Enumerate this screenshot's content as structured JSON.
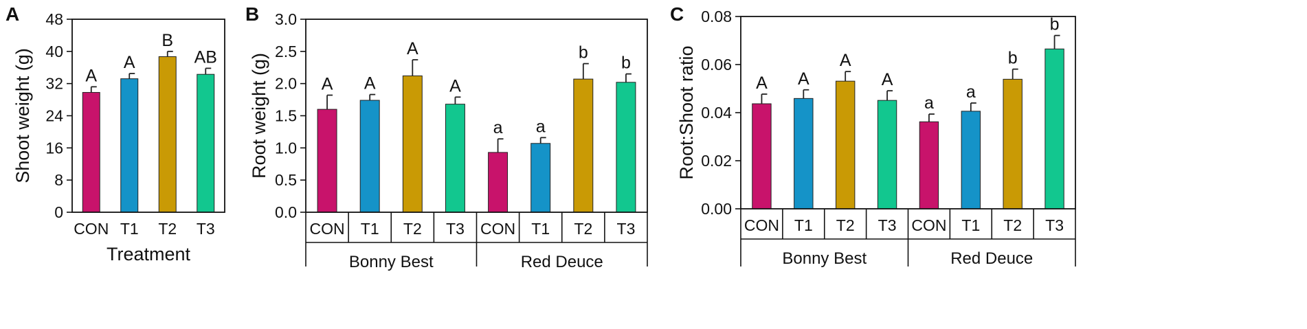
{
  "colors": {
    "CON": "#c8136b",
    "T1": "#1593c8",
    "T2": "#c99a05",
    "T3": "#12c78f",
    "axis": "#111111"
  },
  "chart_data": [
    {
      "panel": "A",
      "type": "bar",
      "ylabel": "Shoot weight (g)",
      "xlabel": "Treatment",
      "ylim": [
        0,
        48
      ],
      "yticks": [
        "0",
        "8",
        "16",
        "24",
        "32",
        "40",
        "48"
      ],
      "categories": [
        "CON",
        "T1",
        "T2",
        "T3"
      ],
      "groups": [],
      "values": [
        29.8,
        33.2,
        38.7,
        34.3
      ],
      "errors": [
        1.4,
        1.3,
        1.3,
        1.5
      ],
      "letters": [
        "A",
        "A",
        "B",
        "AB"
      ]
    },
    {
      "panel": "B",
      "type": "bar",
      "ylabel": "Root weight (g)",
      "xlabel": "",
      "ylim": [
        0,
        3.0
      ],
      "yticks": [
        "0.0",
        "0.5",
        "1.0",
        "1.5",
        "2.0",
        "2.5",
        "3.0"
      ],
      "categories": [
        "CON",
        "T1",
        "T2",
        "T3",
        "CON",
        "T1",
        "T2",
        "T3"
      ],
      "groups": [
        "Bonny Best",
        "Red Deuce"
      ],
      "values": [
        1.6,
        1.74,
        2.12,
        1.68,
        0.93,
        1.07,
        2.07,
        2.02
      ],
      "errors": [
        0.22,
        0.09,
        0.25,
        0.11,
        0.21,
        0.09,
        0.24,
        0.13
      ],
      "letters": [
        "A",
        "A",
        "A",
        "A",
        "a",
        "a",
        "b",
        "b"
      ]
    },
    {
      "panel": "C",
      "type": "bar",
      "ylabel": "Root:Shoot ratio",
      "xlabel": "",
      "ylim": [
        0,
        0.08
      ],
      "yticks": [
        "0.00",
        "0.02",
        "0.04",
        "0.06",
        "0.08"
      ],
      "categories": [
        "CON",
        "T1",
        "T2",
        "T3",
        "CON",
        "T1",
        "T2",
        "T3"
      ],
      "groups": [
        "Bonny Best",
        "Red Deuce"
      ],
      "values": [
        0.0437,
        0.0459,
        0.0531,
        0.0451,
        0.0362,
        0.0406,
        0.0539,
        0.0665
      ],
      "errors": [
        0.004,
        0.0036,
        0.004,
        0.004,
        0.0032,
        0.0034,
        0.0042,
        0.0056
      ],
      "letters": [
        "A",
        "A",
        "A",
        "A",
        "a",
        "a",
        "b",
        "b"
      ]
    }
  ]
}
